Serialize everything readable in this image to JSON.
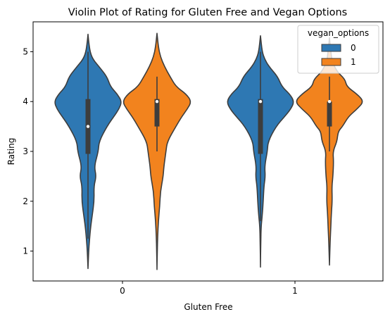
{
  "chart_data": {
    "type": "violin",
    "title": "Violin Plot of Rating for Gluten Free and Vegan Options",
    "xlabel": "Gluten Free",
    "ylabel": "Rating",
    "categories": [
      "0",
      "1"
    ],
    "ylim": [
      0.4,
      5.6
    ],
    "yticks": [
      1,
      2,
      3,
      4,
      5
    ],
    "grid": false,
    "legend": {
      "title": "vegan_options",
      "placement": "top-right"
    },
    "series": [
      {
        "name": "0",
        "color": "#2e78b3",
        "violins": [
          {
            "category": "0",
            "min": 0.65,
            "max": 5.35,
            "q1": 2.95,
            "median": 3.5,
            "q3": 4.05,
            "whisker_low": 1.25,
            "whisker_high": 5.0,
            "profile": [
              [
                0.65,
                0.0
              ],
              [
                1.0,
                0.02
              ],
              [
                1.2,
                0.04
              ],
              [
                1.5,
                0.08
              ],
              [
                1.7,
                0.12
              ],
              [
                2.0,
                0.18
              ],
              [
                2.3,
                0.17
              ],
              [
                2.5,
                0.24
              ],
              [
                2.7,
                0.18
              ],
              [
                3.0,
                0.3
              ],
              [
                3.2,
                0.32
              ],
              [
                3.5,
                0.55
              ],
              [
                3.7,
                0.75
              ],
              [
                3.85,
                0.9
              ],
              [
                4.0,
                0.98
              ],
              [
                4.15,
                0.85
              ],
              [
                4.3,
                0.65
              ],
              [
                4.5,
                0.55
              ],
              [
                4.7,
                0.32
              ],
              [
                4.85,
                0.14
              ],
              [
                5.0,
                0.06
              ],
              [
                5.2,
                0.02
              ],
              [
                5.35,
                0.0
              ]
            ]
          },
          {
            "category": "1",
            "min": 0.68,
            "max": 5.32,
            "q1": 2.95,
            "median": 4.0,
            "q3": 4.05,
            "whisker_low": 1.6,
            "whisker_high": 5.0,
            "profile": [
              [
                0.68,
                0.0
              ],
              [
                1.2,
                0.01
              ],
              [
                1.5,
                0.02
              ],
              [
                1.7,
                0.05
              ],
              [
                2.0,
                0.08
              ],
              [
                2.3,
                0.1
              ],
              [
                2.5,
                0.14
              ],
              [
                2.7,
                0.12
              ],
              [
                3.0,
                0.2
              ],
              [
                3.2,
                0.22
              ],
              [
                3.5,
                0.45
              ],
              [
                3.7,
                0.7
              ],
              [
                3.85,
                0.88
              ],
              [
                4.0,
                0.98
              ],
              [
                4.15,
                0.85
              ],
              [
                4.3,
                0.62
              ],
              [
                4.5,
                0.5
              ],
              [
                4.7,
                0.25
              ],
              [
                4.85,
                0.12
              ],
              [
                5.0,
                0.05
              ],
              [
                5.32,
                0.0
              ]
            ]
          }
        ]
      },
      {
        "name": "1",
        "color": "#f2831e",
        "violins": [
          {
            "category": "0",
            "min": 0.63,
            "max": 5.37,
            "q1": 3.5,
            "median": 4.0,
            "q3": 4.05,
            "whisker_low": 3.0,
            "whisker_high": 4.5,
            "profile": [
              [
                0.63,
                0.0
              ],
              [
                1.0,
                0.01
              ],
              [
                1.3,
                0.02
              ],
              [
                1.6,
                0.04
              ],
              [
                1.9,
                0.08
              ],
              [
                2.2,
                0.1
              ],
              [
                2.5,
                0.18
              ],
              [
                2.7,
                0.2
              ],
              [
                3.0,
                0.26
              ],
              [
                3.2,
                0.3
              ],
              [
                3.5,
                0.55
              ],
              [
                3.7,
                0.72
              ],
              [
                3.85,
                0.88
              ],
              [
                4.0,
                1.0
              ],
              [
                4.15,
                0.85
              ],
              [
                4.3,
                0.55
              ],
              [
                4.5,
                0.38
              ],
              [
                4.7,
                0.22
              ],
              [
                4.9,
                0.1
              ],
              [
                5.1,
                0.04
              ],
              [
                5.37,
                0.0
              ]
            ]
          },
          {
            "category": "1",
            "min": 0.72,
            "max": 5.28,
            "q1": 3.5,
            "median": 4.0,
            "q3": 4.0,
            "whisker_low": 3.0,
            "whisker_high": 4.5,
            "profile": [
              [
                0.72,
                0.0
              ],
              [
                1.2,
                0.02
              ],
              [
                1.5,
                0.04
              ],
              [
                1.8,
                0.06
              ],
              [
                2.0,
                0.08
              ],
              [
                2.3,
                0.07
              ],
              [
                2.5,
                0.1
              ],
              [
                2.8,
                0.12
              ],
              [
                3.0,
                0.1
              ],
              [
                3.2,
                0.22
              ],
              [
                3.4,
                0.25
              ],
              [
                3.5,
                0.38
              ],
              [
                3.7,
                0.55
              ],
              [
                3.85,
                0.8
              ],
              [
                4.0,
                1.0
              ],
              [
                4.15,
                0.8
              ],
              [
                4.3,
                0.5
              ],
              [
                4.45,
                0.45
              ],
              [
                4.6,
                0.22
              ],
              [
                4.8,
                0.08
              ],
              [
                5.0,
                0.04
              ],
              [
                5.28,
                0.0
              ]
            ]
          }
        ]
      }
    ]
  }
}
